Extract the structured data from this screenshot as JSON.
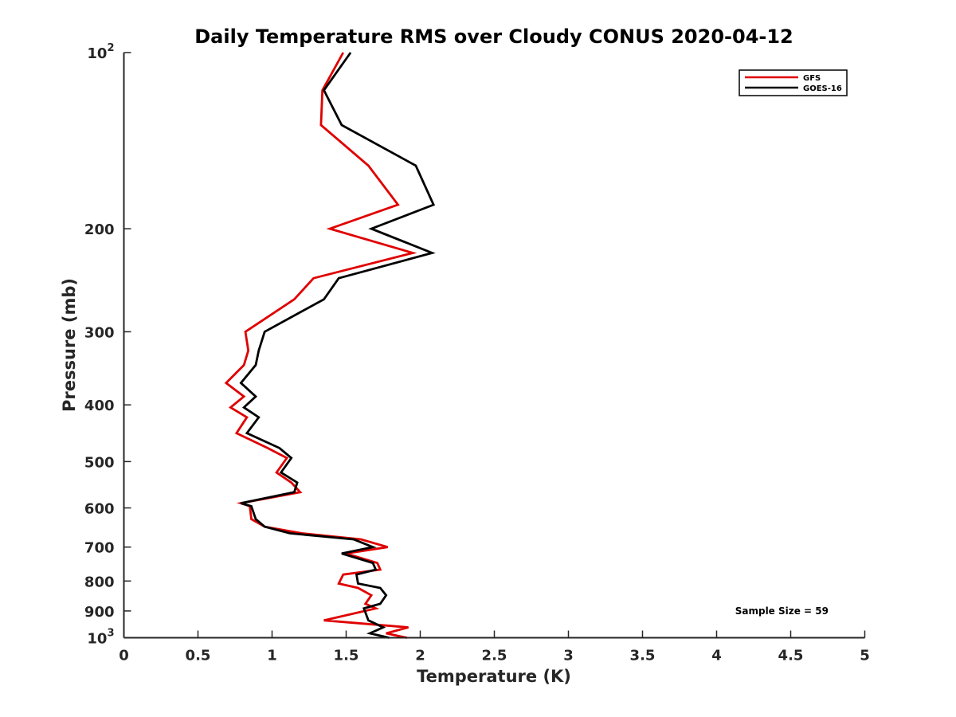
{
  "chart_data": {
    "type": "line",
    "title": "Daily Temperature RMS over Cloudy CONUS 2020-04-12",
    "xlabel": "Temperature (K)",
    "ylabel": "Pressure (mb)",
    "xlim": [
      0,
      5
    ],
    "ylim": [
      100,
      1000
    ],
    "y_scale": "log",
    "y_reversed": true,
    "x_ticks": [
      "0",
      "0.5",
      "1",
      "1.5",
      "2",
      "2.5",
      "3",
      "3.5",
      "4",
      "4.5",
      "5"
    ],
    "y_ticks": [
      {
        "value": 100,
        "label": "10",
        "sup": "2"
      },
      {
        "value": 200,
        "label": "200",
        "sup": ""
      },
      {
        "value": 300,
        "label": "300",
        "sup": ""
      },
      {
        "value": 400,
        "label": "400",
        "sup": ""
      },
      {
        "value": 500,
        "label": "500",
        "sup": ""
      },
      {
        "value": 600,
        "label": "600",
        "sup": ""
      },
      {
        "value": 700,
        "label": "700",
        "sup": ""
      },
      {
        "value": 800,
        "label": "800",
        "sup": ""
      },
      {
        "value": 900,
        "label": "900",
        "sup": ""
      },
      {
        "value": 1000,
        "label": "10",
        "sup": "3"
      }
    ],
    "grid": false,
    "legend_position": "top-right",
    "annotation": "Sample Size = 59",
    "series": [
      {
        "name": "GFS",
        "color": "#e00000",
        "points": [
          [
            1.48,
            100
          ],
          [
            1.34,
            116
          ],
          [
            1.33,
            133
          ],
          [
            1.65,
            156
          ],
          [
            1.85,
            182
          ],
          [
            1.39,
            200
          ],
          [
            1.95,
            220
          ],
          [
            1.28,
            243
          ],
          [
            1.15,
            264
          ],
          [
            0.82,
            300
          ],
          [
            0.84,
            323
          ],
          [
            0.81,
            342
          ],
          [
            0.69,
            367
          ],
          [
            0.81,
            387
          ],
          [
            0.72,
            404
          ],
          [
            0.83,
            420
          ],
          [
            0.76,
            447
          ],
          [
            0.97,
            474
          ],
          [
            1.1,
            493
          ],
          [
            1.03,
            522
          ],
          [
            1.13,
            543
          ],
          [
            1.19,
            564
          ],
          [
            0.79,
            589
          ],
          [
            0.85,
            596
          ],
          [
            0.86,
            627
          ],
          [
            0.95,
            646
          ],
          [
            1.2,
            663
          ],
          [
            1.6,
            679
          ],
          [
            1.78,
            700
          ],
          [
            1.5,
            718
          ],
          [
            1.71,
            745
          ],
          [
            1.73,
            765
          ],
          [
            1.48,
            780
          ],
          [
            1.45,
            808
          ],
          [
            1.58,
            822
          ],
          [
            1.67,
            846
          ],
          [
            1.63,
            875
          ],
          [
            1.7,
            891
          ],
          [
            1.35,
            934
          ],
          [
            1.92,
            960
          ],
          [
            1.77,
            983
          ],
          [
            1.91,
            1000
          ]
        ]
      },
      {
        "name": "GOES-16",
        "color": "#000000",
        "points": [
          [
            1.53,
            100
          ],
          [
            1.35,
            116
          ],
          [
            1.47,
            133
          ],
          [
            1.97,
            156
          ],
          [
            2.09,
            182
          ],
          [
            1.67,
            200
          ],
          [
            2.08,
            220
          ],
          [
            1.45,
            243
          ],
          [
            1.35,
            264
          ],
          [
            0.95,
            300
          ],
          [
            0.91,
            323
          ],
          [
            0.89,
            342
          ],
          [
            0.79,
            367
          ],
          [
            0.89,
            387
          ],
          [
            0.81,
            404
          ],
          [
            0.91,
            420
          ],
          [
            0.83,
            447
          ],
          [
            1.05,
            474
          ],
          [
            1.13,
            493
          ],
          [
            1.06,
            522
          ],
          [
            1.17,
            543
          ],
          [
            1.15,
            564
          ],
          [
            0.79,
            589
          ],
          [
            0.86,
            596
          ],
          [
            0.89,
            627
          ],
          [
            0.95,
            646
          ],
          [
            1.12,
            663
          ],
          [
            1.55,
            679
          ],
          [
            1.68,
            700
          ],
          [
            1.47,
            718
          ],
          [
            1.68,
            745
          ],
          [
            1.7,
            765
          ],
          [
            1.57,
            780
          ],
          [
            1.58,
            808
          ],
          [
            1.73,
            822
          ],
          [
            1.77,
            846
          ],
          [
            1.73,
            875
          ],
          [
            1.62,
            891
          ],
          [
            1.65,
            934
          ],
          [
            1.75,
            960
          ],
          [
            1.66,
            983
          ],
          [
            1.79,
            1000
          ]
        ]
      }
    ]
  }
}
